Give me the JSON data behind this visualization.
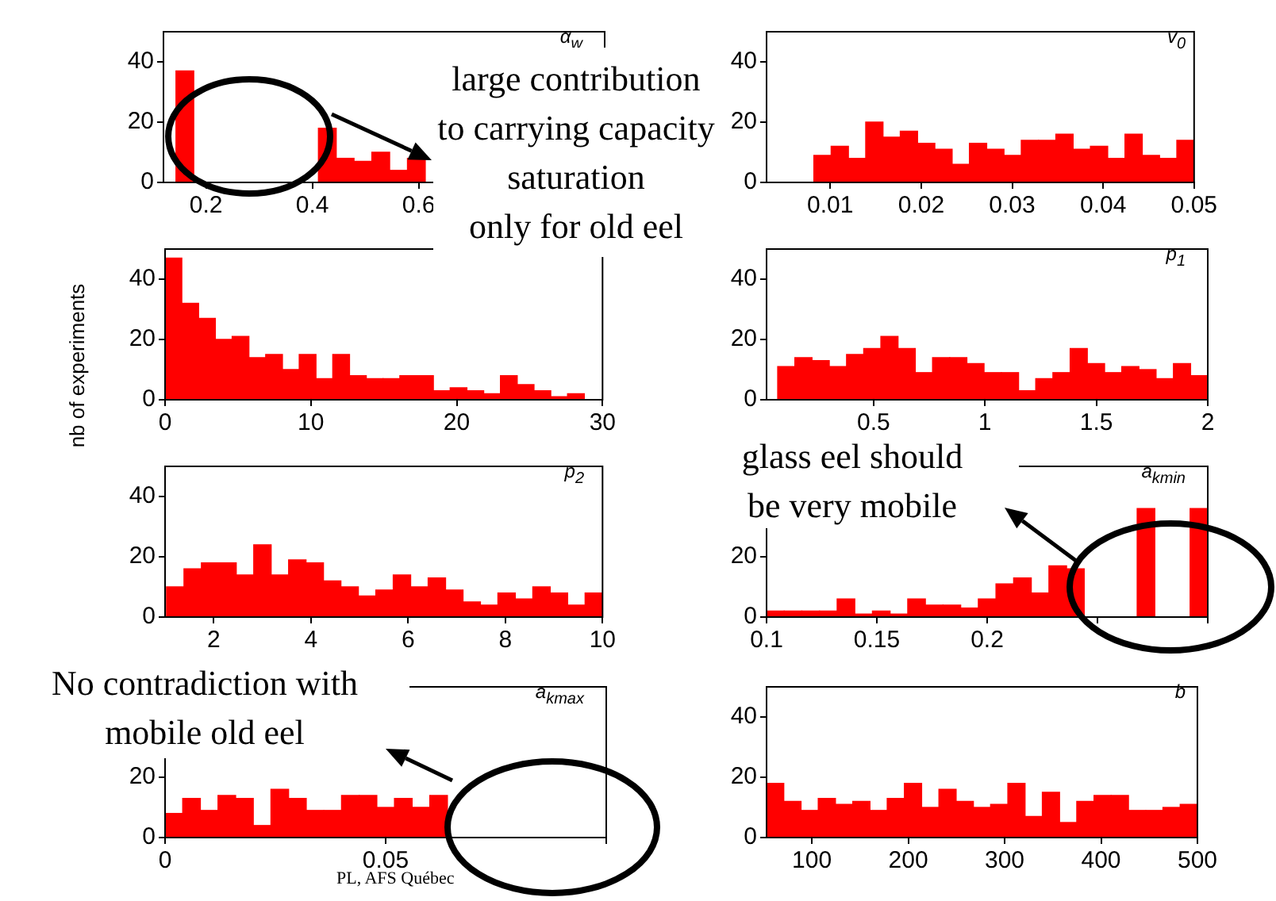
{
  "chart_data": [
    {
      "type": "histogram",
      "title": "α$_{w}$",
      "color": "#ff0000",
      "xlim": [
        0.12,
        0.95
      ],
      "ylim": [
        0,
        50
      ],
      "xticks": [
        0.2,
        0.4,
        0.6
      ],
      "yticks": [
        0,
        20,
        40
      ],
      "bins": [
        0.1435,
        0.177,
        0.2105,
        0.244,
        0.2775,
        0.311,
        0.3445,
        0.378,
        0.4115,
        0.445,
        0.4785,
        0.512,
        0.5455,
        0.579,
        0.6125
      ],
      "values": [
        37,
        null,
        null,
        null,
        null,
        null,
        null,
        null,
        18,
        8,
        7,
        10,
        4,
        8
      ],
      "annotations": [
        "large contribution\nto carrying capacity\nsaturation\nonly for old eel"
      ]
    },
    {
      "type": "histogram",
      "title": "v$_{0}$",
      "color": "#ff0000",
      "xlim": [
        0.003,
        0.05
      ],
      "ylim": [
        0,
        50
      ],
      "xticks": [
        0.01,
        0.02,
        0.03,
        0.04,
        0.05
      ],
      "yticks": [
        0,
        20,
        40
      ],
      "bins": [
        0.0082,
        0.0101,
        0.012,
        0.0139,
        0.0158,
        0.0177,
        0.0196,
        0.0215,
        0.0234,
        0.0253,
        0.0272,
        0.0291,
        0.031,
        0.0329,
        0.0348,
        0.0367,
        0.0386,
        0.0405,
        0.0424,
        0.0443,
        0.0462,
        0.0481,
        0.05
      ],
      "values": [
        9,
        12,
        8,
        20,
        15,
        17,
        13,
        11,
        6,
        13,
        11,
        9,
        14,
        14,
        16,
        11,
        12,
        8,
        16,
        9,
        8,
        14
      ]
    },
    {
      "type": "histogram",
      "ylabel": "nb of experiments",
      "color": "#ff0000",
      "xlim": [
        0,
        30
      ],
      "ylim": [
        0,
        50
      ],
      "xticks": [
        0,
        10,
        20,
        30
      ],
      "yticks": [
        0,
        20,
        40
      ],
      "bins": [
        0,
        1.15,
        2.3,
        3.45,
        4.6,
        5.75,
        6.9,
        8.05,
        9.2,
        10.35,
        11.5,
        12.65,
        13.8,
        14.95,
        16.1,
        17.25,
        18.4,
        19.55,
        20.7,
        21.85,
        23,
        24.15,
        25.3,
        26.45,
        27.6,
        28.75
      ],
      "values": [
        47,
        32,
        27,
        20,
        21,
        14,
        15,
        10,
        15,
        7,
        15,
        8,
        7,
        7,
        8,
        8,
        3,
        4,
        3,
        2,
        8,
        5,
        3,
        1,
        2
      ]
    },
    {
      "type": "histogram",
      "title": "p$_{1}$",
      "color": "#ff0000",
      "xlim": [
        0.02,
        2
      ],
      "ylim": [
        0,
        50
      ],
      "xticks": [
        0.5,
        1,
        1.5,
        2
      ],
      "yticks": [
        0,
        20,
        40
      ],
      "bins": [
        0.07,
        0.147,
        0.224,
        0.302,
        0.379,
        0.456,
        0.533,
        0.61,
        0.688,
        0.765,
        0.842,
        0.919,
        0.996,
        1.074,
        1.151,
        1.228,
        1.305,
        1.382,
        1.46,
        1.537,
        1.614,
        1.691,
        1.768,
        1.846,
        1.923,
        2.0
      ],
      "values": [
        11,
        14,
        13,
        11,
        15,
        17,
        21,
        17,
        9,
        14,
        14,
        12,
        9,
        9,
        3,
        7,
        9,
        17,
        12,
        9,
        11,
        10,
        7,
        12,
        8
      ]
    },
    {
      "type": "histogram",
      "title": "p$_{2}$",
      "color": "#ff0000",
      "xlim": [
        1,
        10
      ],
      "ylim": [
        0,
        50
      ],
      "xticks": [
        2,
        4,
        6,
        8,
        10
      ],
      "yticks": [
        0,
        20,
        40
      ],
      "bins": [
        1.03,
        1.389,
        1.748,
        2.106,
        2.465,
        2.824,
        3.183,
        3.542,
        3.9,
        4.259,
        4.618,
        4.977,
        5.336,
        5.694,
        6.053,
        6.412,
        6.771,
        7.13,
        7.488,
        7.847,
        8.206,
        8.565,
        8.924,
        9.282,
        9.641,
        10.0
      ],
      "values": [
        10,
        16,
        18,
        18,
        14,
        24,
        14,
        19,
        18,
        12,
        10,
        7,
        9,
        14,
        10,
        13,
        9,
        5,
        4,
        8,
        6,
        10,
        8,
        4,
        8
      ]
    },
    {
      "type": "histogram",
      "title": "a$_{kmin}$",
      "color": "#ff0000",
      "xlim": [
        0.1,
        0.3
      ],
      "ylim": [
        0,
        50
      ],
      "xticks": [
        0.1,
        0.15,
        0.2,
        {
          "value": 0.25,
          "label": null
        },
        {
          "value": 0.3,
          "label": null
        }
      ],
      "yticks": [
        0,
        20,
        {
          "value": 40,
          "label": null
        }
      ],
      "bins": [
        0.1,
        0.108,
        0.116,
        0.124,
        0.132,
        0.14,
        0.148,
        0.156,
        0.164,
        0.172,
        0.18,
        0.188,
        0.196,
        0.204,
        0.212,
        0.22,
        0.228,
        0.236,
        0.244,
        0.252,
        0.26,
        0.268,
        0.276,
        0.284,
        0.292,
        0.3
      ],
      "values": [
        2,
        2,
        2,
        2,
        6,
        1,
        2,
        1,
        6,
        4,
        4,
        3,
        6,
        11,
        13,
        8,
        17,
        16,
        null,
        null,
        null,
        36,
        null,
        null,
        36
      ],
      "annotations": [
        "glass eel should\nbe very mobile"
      ]
    },
    {
      "type": "histogram",
      "title": "a$_{kmax}$",
      "color": "#ff0000",
      "xlim": [
        0,
        0.1
      ],
      "ylim": [
        0,
        50
      ],
      "xticks": [
        0,
        0.05,
        {
          "value": 0.1,
          "label": null
        }
      ],
      "yticks": [
        0,
        20,
        {
          "value": 40,
          "label": null
        }
      ],
      "bins": [
        0,
        0.004,
        0.008,
        0.012,
        0.016,
        0.02,
        0.024,
        0.028,
        0.032,
        0.036,
        0.04,
        0.044,
        0.048,
        0.052,
        0.056,
        0.06,
        0.064,
        0.068,
        0.072,
        0.076,
        0.08,
        0.084,
        0.088,
        0.092,
        0.096,
        0.1
      ],
      "values": [
        8,
        13,
        9,
        14,
        13,
        4,
        16,
        13,
        9,
        9,
        14,
        14,
        10,
        13,
        10,
        14,
        null,
        null,
        null,
        null,
        null,
        null,
        null,
        null,
        null
      ],
      "annotations": [
        "No contradiction with\nmobile old eel",
        "PL, AFS Québec"
      ]
    },
    {
      "type": "histogram",
      "title": "b",
      "color": "#ff0000",
      "xlim": [
        53,
        500
      ],
      "ylim": [
        0,
        50
      ],
      "xticks": [
        100,
        200,
        300,
        400,
        500
      ],
      "yticks": [
        0,
        20,
        40
      ],
      "bins": [
        53,
        70.9,
        88.8,
        106.6,
        124.5,
        142.4,
        160.3,
        178.2,
        196,
        213.9,
        231.8,
        249.7,
        267.6,
        285.4,
        303.3,
        321.2,
        339.1,
        357,
        374.8,
        392.7,
        410.6,
        428.5,
        446.4,
        464.2,
        482.1,
        500
      ],
      "values": [
        18,
        12,
        9,
        13,
        11,
        12,
        9,
        13,
        18,
        10,
        16,
        12,
        10,
        11,
        18,
        7,
        15,
        5,
        12,
        14,
        14,
        9,
        9,
        10,
        11
      ]
    }
  ]
}
